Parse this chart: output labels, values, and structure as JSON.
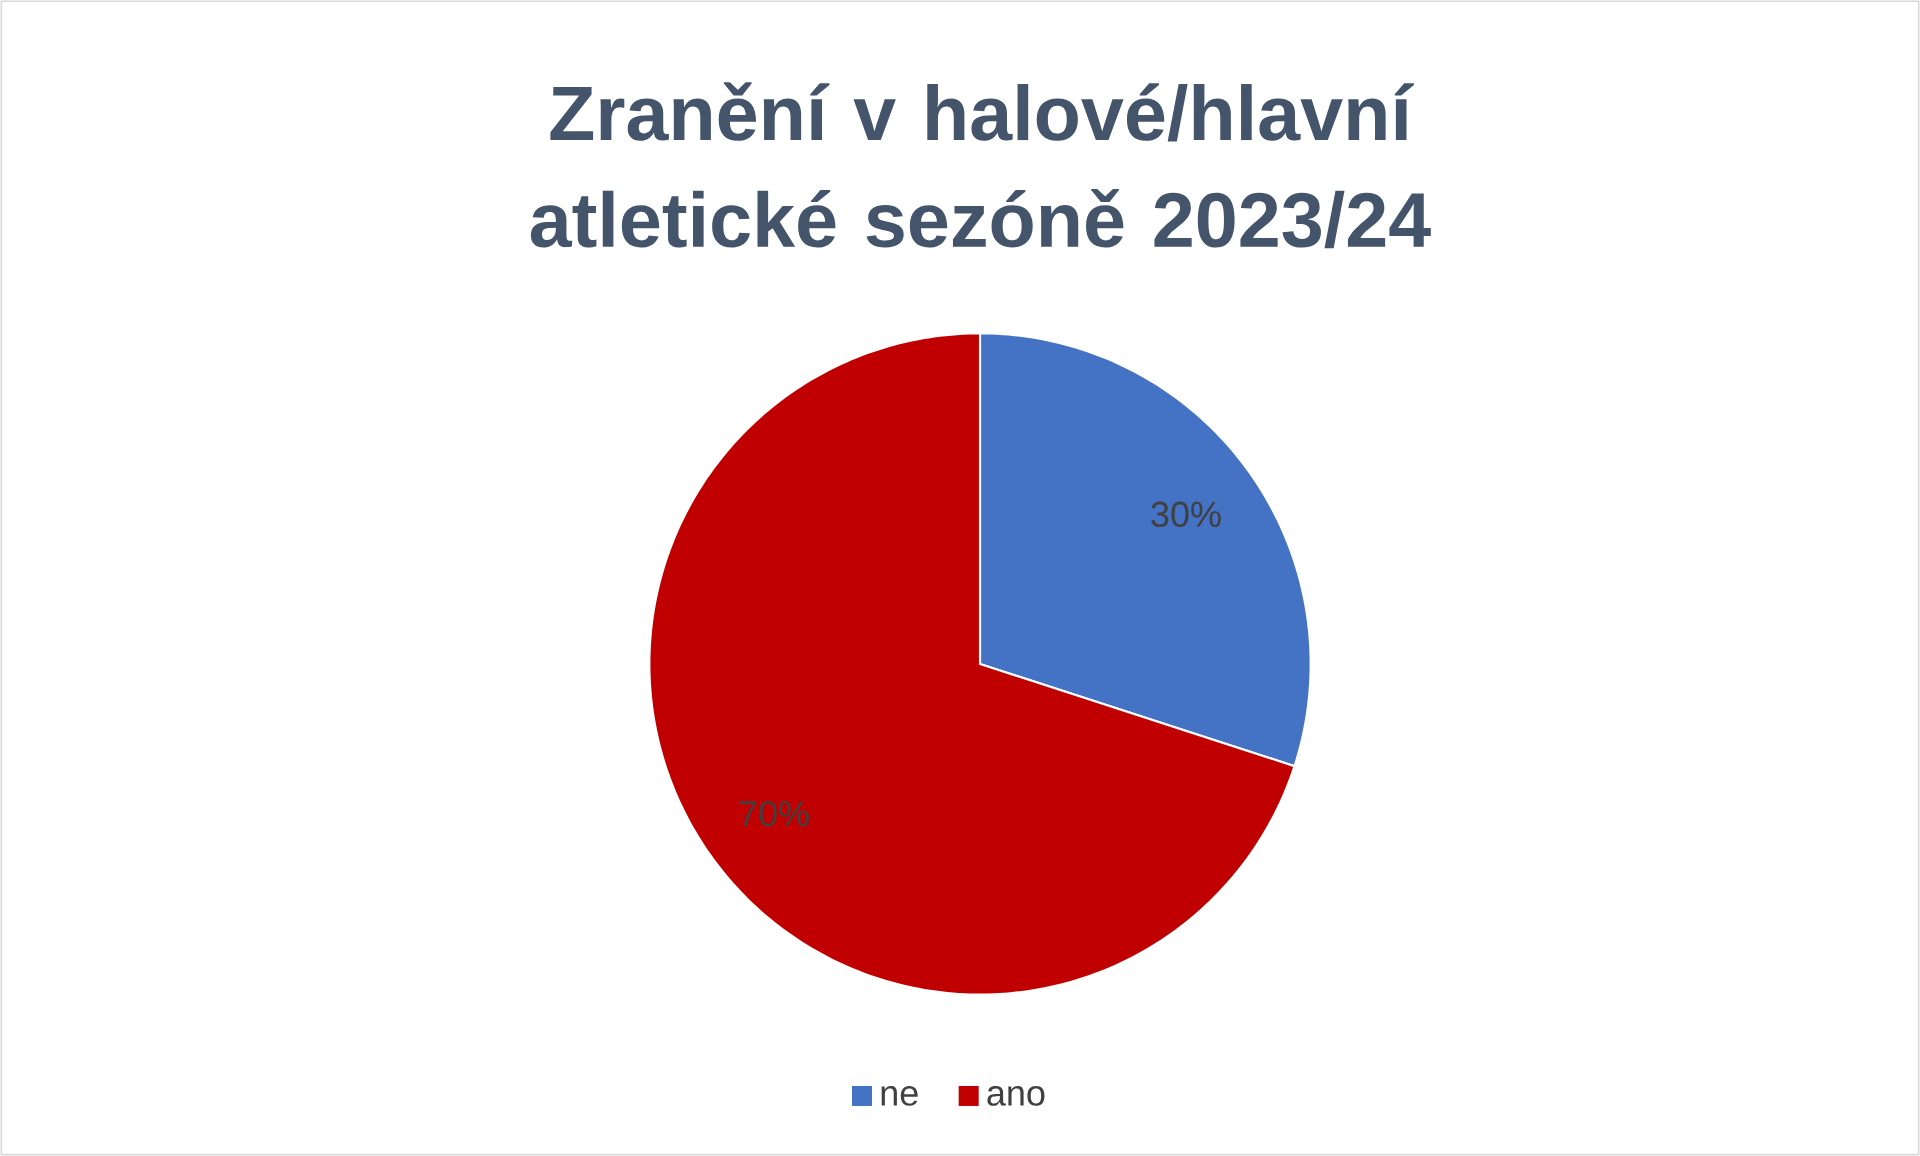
{
  "chart_data": {
    "type": "pie",
    "title": "Zranění v halové/hlavní atletické sezóně 2023/24",
    "categories": [
      "ne",
      "ano"
    ],
    "values": [
      30,
      70
    ],
    "colors": [
      "#4472c4",
      "#c00000"
    ],
    "value_labels": [
      "30%",
      "70%"
    ],
    "legend": "bottom"
  }
}
